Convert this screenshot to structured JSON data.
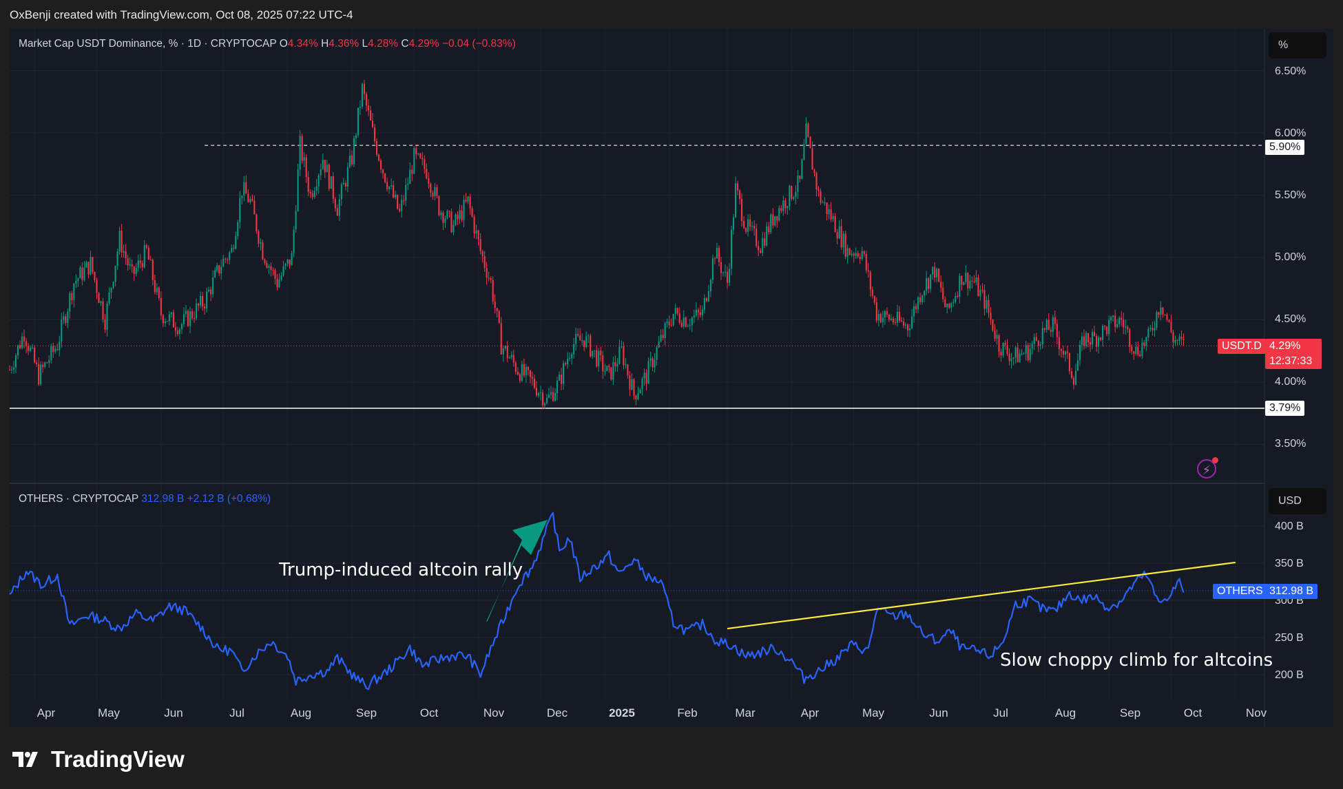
{
  "credit": "OxBenji created with TradingView.com, Oct 08, 2025 07:22 UTC-4",
  "top_legend": {
    "title": "Market Cap USDT Dominance, % · 1D · CRYPTOCAP",
    "o_label": "O",
    "o_value": "4.34%",
    "h_label": "H",
    "h_value": "4.36%",
    "l_label": "L",
    "l_value": "4.28%",
    "c_label": "C",
    "c_value": "4.29%",
    "change": "−0.04 (−0.83%)"
  },
  "bottom_legend": {
    "title": "OTHERS · CRYPTOCAP",
    "value": "312.98 B",
    "change": "+2.12 B (+0.68%)"
  },
  "top_unit": "%",
  "bottom_unit": "USD",
  "top_axis_labels": [
    "6.50%",
    "6.00%",
    "5.50%",
    "5.00%",
    "4.50%",
    "4.00%",
    "3.50%"
  ],
  "bottom_axis_labels": [
    "400 B",
    "350 B",
    "300 B",
    "250 B",
    "200 B"
  ],
  "price_tags": {
    "resistance": "5.90%",
    "support": "3.79%",
    "usdt_name": "USDT.D",
    "usdt_value": "4.29%",
    "countdown": "12:37:33",
    "others_name": "OTHERS",
    "others_value": "312.98 B"
  },
  "x_labels": [
    "Apr",
    "May",
    "Jun",
    "Jul",
    "Aug",
    "Sep",
    "Oct",
    "Nov",
    "Dec",
    "2025",
    "Feb",
    "Mar",
    "Apr",
    "May",
    "Jun",
    "Jul",
    "Aug",
    "Sep",
    "Oct",
    "Nov"
  ],
  "annotations": {
    "rally": "Trump-induced altcoin rally",
    "climb": "Slow choppy climb for altcoins"
  },
  "footer_brand": "TradingView",
  "colors": {
    "up": "#089981",
    "down": "#f23645",
    "others_line": "#2962ff",
    "trendline": "#ffeb3b",
    "arrow": "#089981",
    "background": "#161a25"
  },
  "chart_data": [
    {
      "type": "candlestick",
      "title": "Market Cap USDT Dominance, % · 1D · CRYPTOCAP",
      "ylabel": "%",
      "ylim": [
        3.3,
        6.7
      ],
      "x_range": [
        "2024-03-20",
        "2025-11-15"
      ],
      "levels": {
        "resistance": 5.9,
        "support": 3.79,
        "last": 4.29
      },
      "close_path": [
        [
          "2024-03-20",
          4.1
        ],
        [
          "2024-03-27",
          4.4
        ],
        [
          "2024-04-03",
          4.05
        ],
        [
          "2024-04-12",
          4.3
        ],
        [
          "2024-04-20",
          4.8
        ],
        [
          "2024-04-28",
          4.95
        ],
        [
          "2024-05-05",
          4.5
        ],
        [
          "2024-05-12",
          5.15
        ],
        [
          "2024-05-18",
          4.85
        ],
        [
          "2024-05-25",
          5.05
        ],
        [
          "2024-06-01",
          4.55
        ],
        [
          "2024-06-10",
          4.45
        ],
        [
          "2024-06-16",
          4.55
        ],
        [
          "2024-06-22",
          4.65
        ],
        [
          "2024-06-30",
          4.95
        ],
        [
          "2024-07-05",
          5.05
        ],
        [
          "2024-07-10",
          5.55
        ],
        [
          "2024-07-14",
          5.45
        ],
        [
          "2024-07-20",
          5.05
        ],
        [
          "2024-07-27",
          4.8
        ],
        [
          "2024-08-03",
          5.0
        ],
        [
          "2024-08-07",
          5.9
        ],
        [
          "2024-08-12",
          5.5
        ],
        [
          "2024-08-18",
          5.8
        ],
        [
          "2024-08-25",
          5.4
        ],
        [
          "2024-09-01",
          5.8
        ],
        [
          "2024-09-06",
          6.35
        ],
        [
          "2024-09-11",
          6.0
        ],
        [
          "2024-09-16",
          5.7
        ],
        [
          "2024-09-24",
          5.35
        ],
        [
          "2024-10-01",
          5.8
        ],
        [
          "2024-10-07",
          5.7
        ],
        [
          "2024-10-13",
          5.4
        ],
        [
          "2024-10-20",
          5.25
        ],
        [
          "2024-10-27",
          5.45
        ],
        [
          "2024-11-02",
          5.05
        ],
        [
          "2024-11-07",
          4.8
        ],
        [
          "2024-11-12",
          4.3
        ],
        [
          "2024-11-20",
          4.1
        ],
        [
          "2024-11-27",
          4.0
        ],
        [
          "2024-12-04",
          3.85
        ],
        [
          "2024-12-10",
          4.0
        ],
        [
          "2024-12-16",
          4.3
        ],
        [
          "2024-12-22",
          4.35
        ],
        [
          "2024-12-28",
          4.2
        ],
        [
          "2025-01-03",
          4.05
        ],
        [
          "2025-01-09",
          4.25
        ],
        [
          "2025-01-15",
          3.9
        ],
        [
          "2025-01-21",
          4.05
        ],
        [
          "2025-01-27",
          4.3
        ],
        [
          "2025-02-03",
          4.55
        ],
        [
          "2025-02-10",
          4.5
        ],
        [
          "2025-02-17",
          4.55
        ],
        [
          "2025-02-23",
          5.05
        ],
        [
          "2025-03-01",
          4.8
        ],
        [
          "2025-03-05",
          5.55
        ],
        [
          "2025-03-10",
          5.25
        ],
        [
          "2025-03-17",
          5.1
        ],
        [
          "2025-03-24",
          5.35
        ],
        [
          "2025-03-31",
          5.5
        ],
        [
          "2025-04-05",
          5.6
        ],
        [
          "2025-04-08",
          6.0
        ],
        [
          "2025-04-14",
          5.5
        ],
        [
          "2025-04-21",
          5.3
        ],
        [
          "2025-04-28",
          5.05
        ],
        [
          "2025-05-05",
          5.05
        ],
        [
          "2025-05-12",
          4.55
        ],
        [
          "2025-05-20",
          4.5
        ],
        [
          "2025-05-27",
          4.45
        ],
        [
          "2025-06-03",
          4.75
        ],
        [
          "2025-06-09",
          4.9
        ],
        [
          "2025-06-15",
          4.55
        ],
        [
          "2025-06-22",
          4.85
        ],
        [
          "2025-06-28",
          4.8
        ],
        [
          "2025-07-03",
          4.65
        ],
        [
          "2025-07-10",
          4.3
        ],
        [
          "2025-07-17",
          4.2
        ],
        [
          "2025-07-24",
          4.25
        ],
        [
          "2025-07-31",
          4.4
        ],
        [
          "2025-08-05",
          4.45
        ],
        [
          "2025-08-11",
          4.2
        ],
        [
          "2025-08-15",
          4.05
        ],
        [
          "2025-08-20",
          4.35
        ],
        [
          "2025-08-25",
          4.35
        ],
        [
          "2025-09-01",
          4.45
        ],
        [
          "2025-09-07",
          4.5
        ],
        [
          "2025-09-14",
          4.25
        ],
        [
          "2025-09-20",
          4.35
        ],
        [
          "2025-09-26",
          4.65
        ],
        [
          "2025-10-02",
          4.35
        ],
        [
          "2025-10-07",
          4.29
        ]
      ]
    },
    {
      "type": "line",
      "title": "OTHERS · CRYPTOCAP",
      "ylabel": "USD",
      "ylim": [
        175,
        425
      ],
      "x_range": [
        "2024-03-20",
        "2025-11-15"
      ],
      "last": 312.98,
      "trendline": [
        [
          "2025-03-01",
          262
        ],
        [
          "2025-11-01",
          351
        ]
      ],
      "series": [
        {
          "name": "OTHERS",
          "values": [
            [
              "2024-03-20",
              305
            ],
            [
              "2024-03-28",
              340
            ],
            [
              "2024-04-05",
              320
            ],
            [
              "2024-04-12",
              335
            ],
            [
              "2024-04-18",
              265
            ],
            [
              "2024-04-26",
              280
            ],
            [
              "2024-05-03",
              275
            ],
            [
              "2024-05-12",
              262
            ],
            [
              "2024-05-20",
              282
            ],
            [
              "2024-05-28",
              272
            ],
            [
              "2024-06-05",
              292
            ],
            [
              "2024-06-12",
              287
            ],
            [
              "2024-06-20",
              265
            ],
            [
              "2024-06-28",
              235
            ],
            [
              "2024-07-05",
              232
            ],
            [
              "2024-07-10",
              205
            ],
            [
              "2024-07-17",
              228
            ],
            [
              "2024-07-24",
              245
            ],
            [
              "2024-08-01",
              225
            ],
            [
              "2024-08-05",
              192
            ],
            [
              "2024-08-12",
              200
            ],
            [
              "2024-08-20",
              205
            ],
            [
              "2024-08-25",
              222
            ],
            [
              "2024-09-03",
              195
            ],
            [
              "2024-09-08",
              185
            ],
            [
              "2024-09-16",
              200
            ],
            [
              "2024-09-22",
              215
            ],
            [
              "2024-09-29",
              236
            ],
            [
              "2024-10-05",
              212
            ],
            [
              "2024-10-12",
              220
            ],
            [
              "2024-10-20",
              226
            ],
            [
              "2024-10-27",
              225
            ],
            [
              "2024-11-02",
              200
            ],
            [
              "2024-11-07",
              235
            ],
            [
              "2024-11-14",
              280
            ],
            [
              "2024-11-20",
              320
            ],
            [
              "2024-11-27",
              345
            ],
            [
              "2024-12-04",
              395
            ],
            [
              "2024-12-07",
              415
            ],
            [
              "2024-12-10",
              365
            ],
            [
              "2024-12-15",
              385
            ],
            [
              "2024-12-20",
              330
            ],
            [
              "2024-12-27",
              345
            ],
            [
              "2025-01-03",
              360
            ],
            [
              "2025-01-08",
              335
            ],
            [
              "2025-01-15",
              355
            ],
            [
              "2025-01-22",
              330
            ],
            [
              "2025-01-28",
              325
            ],
            [
              "2025-02-03",
              270
            ],
            [
              "2025-02-10",
              258
            ],
            [
              "2025-02-17",
              268
            ],
            [
              "2025-02-24",
              245
            ],
            [
              "2025-03-03",
              240
            ],
            [
              "2025-03-10",
              225
            ],
            [
              "2025-03-17",
              230
            ],
            [
              "2025-03-24",
              236
            ],
            [
              "2025-04-01",
              218
            ],
            [
              "2025-04-07",
              195
            ],
            [
              "2025-04-14",
              205
            ],
            [
              "2025-04-22",
              220
            ],
            [
              "2025-04-30",
              240
            ],
            [
              "2025-05-08",
              232
            ],
            [
              "2025-05-12",
              288
            ],
            [
              "2025-05-20",
              278
            ],
            [
              "2025-05-27",
              282
            ],
            [
              "2025-06-03",
              255
            ],
            [
              "2025-06-10",
              245
            ],
            [
              "2025-06-17",
              258
            ],
            [
              "2025-06-22",
              235
            ],
            [
              "2025-06-29",
              232
            ],
            [
              "2025-07-06",
              225
            ],
            [
              "2025-07-12",
              245
            ],
            [
              "2025-07-18",
              295
            ],
            [
              "2025-07-25",
              300
            ],
            [
              "2025-07-31",
              288
            ],
            [
              "2025-08-06",
              285
            ],
            [
              "2025-08-13",
              310
            ],
            [
              "2025-08-18",
              300
            ],
            [
              "2025-08-25",
              305
            ],
            [
              "2025-09-01",
              290
            ],
            [
              "2025-09-07",
              300
            ],
            [
              "2025-09-14",
              325
            ],
            [
              "2025-09-19",
              335
            ],
            [
              "2025-09-25",
              295
            ],
            [
              "2025-10-01",
              310
            ],
            [
              "2025-10-05",
              325
            ],
            [
              "2025-10-07",
              313
            ]
          ]
        }
      ]
    }
  ]
}
